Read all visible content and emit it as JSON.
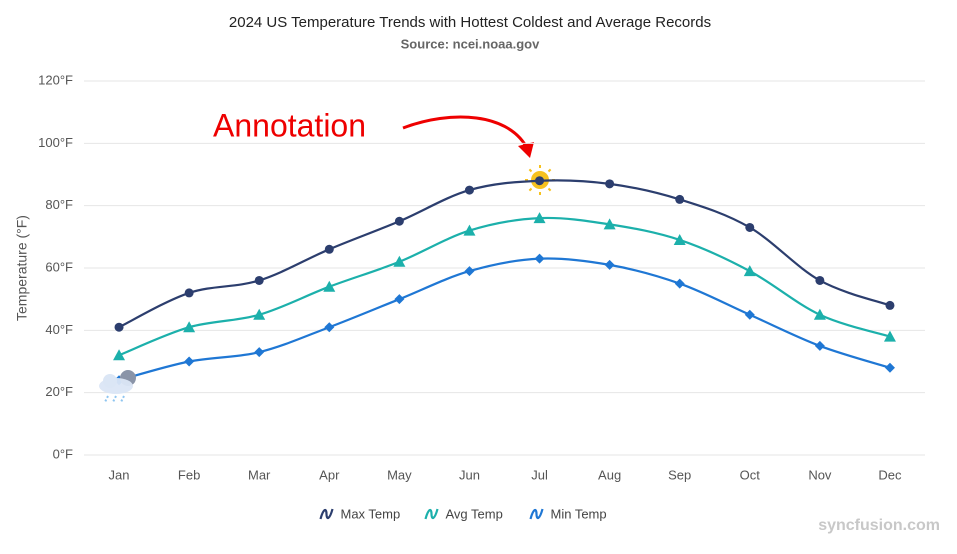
{
  "chart_data": {
    "type": "line",
    "title": "2024 US Temperature Trends with Hottest Coldest and Average Records",
    "subtitle": "Source: ncei.noaa.gov",
    "y_label": "Temperature (°F)",
    "categories": [
      "Jan",
      "Feb",
      "Mar",
      "Apr",
      "May",
      "Jun",
      "Jul",
      "Aug",
      "Sep",
      "Oct",
      "Nov",
      "Dec"
    ],
    "series": [
      {
        "name": "Max Temp",
        "color": "#2c3e6e",
        "marker": "circle",
        "values": [
          41,
          52,
          56,
          66,
          75,
          85,
          88,
          87,
          82,
          73,
          56,
          48
        ]
      },
      {
        "name": "Avg Temp",
        "color": "#1cb0ab",
        "marker": "triangle",
        "values": [
          32,
          41,
          45,
          54,
          62,
          72,
          76,
          74,
          69,
          59,
          45,
          38
        ]
      },
      {
        "name": "Min Temp",
        "color": "#1f77d4",
        "marker": "diamond",
        "values": [
          24,
          30,
          33,
          41,
          50,
          59,
          63,
          61,
          55,
          45,
          35,
          28
        ]
      }
    ],
    "ylim": [
      0,
      120
    ],
    "yticks": [
      {
        "value": 0,
        "label": "0°F"
      },
      {
        "value": 20,
        "label": "20°F"
      },
      {
        "value": 40,
        "label": "40°F"
      },
      {
        "value": 60,
        "label": "60°F"
      },
      {
        "value": 80,
        "label": "80°F"
      },
      {
        "value": 100,
        "label": "100°F"
      },
      {
        "value": 120,
        "label": "120°F"
      }
    ],
    "grid": true,
    "annotation": "Annotation",
    "watermark": "syncfusion.com"
  }
}
